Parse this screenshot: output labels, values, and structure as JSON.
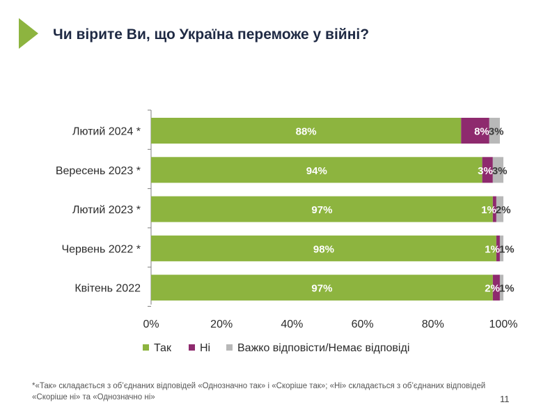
{
  "header": {
    "title": "Чи вірите Ви, що Україна переможе у війні?"
  },
  "chart_data": {
    "type": "bar",
    "orientation": "horizontal",
    "stacked": true,
    "categories": [
      "Лютий 2024 *",
      "Вересень 2023 *",
      "Лютий 2023 *",
      "Червень 2022 *",
      "Квітень 2022"
    ],
    "series": [
      {
        "name": "Так",
        "values": [
          88,
          94,
          97,
          98,
          97
        ],
        "labels": [
          "88%",
          "94%",
          "97%",
          "98%",
          "97%"
        ],
        "color": "#8db43f"
      },
      {
        "name": "Ні",
        "values": [
          8,
          3,
          1,
          1,
          2
        ],
        "labels": [
          "8%",
          "3%",
          "1%",
          "1%",
          "2%"
        ],
        "color": "#8e2a6e"
      },
      {
        "name": "Важко відповісти/Немає відповіді",
        "values": [
          3,
          3,
          2,
          1,
          1
        ],
        "labels": [
          "3%",
          "3%",
          "2%",
          "1%",
          "1%"
        ],
        "color": "#b8b8b8"
      }
    ],
    "xlim": [
      0,
      100
    ],
    "xticks": [
      0,
      20,
      40,
      60,
      80,
      100
    ],
    "xtick_labels": [
      "0%",
      "20%",
      "40%",
      "60%",
      "80%",
      "100%"
    ],
    "legend": "bottom",
    "grid": false
  },
  "footnote": "*«Так» складається з об’єднаних відповідей «Однозначно так» і «Скоріше так»; «Ні» складається з об’єднаних відповідей «Скоріше ні» та «Однозначно ні»",
  "page_number": "11",
  "colors": {
    "accent": "#8db43f",
    "title": "#1f2a44"
  }
}
